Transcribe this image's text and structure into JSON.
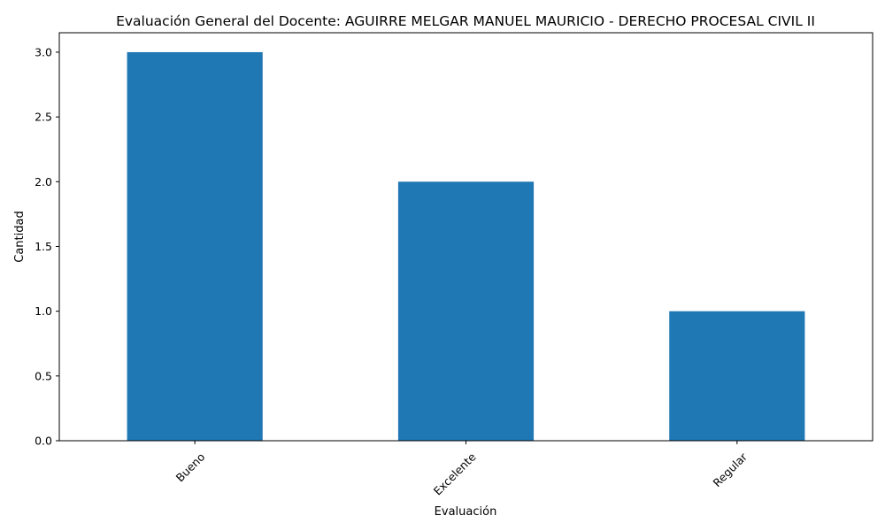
{
  "chart_data": {
    "type": "bar",
    "title": "Evaluación General del Docente: AGUIRRE MELGAR MANUEL MAURICIO - DERECHO PROCESAL CIVIL II",
    "xlabel": "Evaluación",
    "ylabel": "Cantidad",
    "categories": [
      "Bueno",
      "Excelente",
      "Regular"
    ],
    "values": [
      3,
      2,
      1
    ],
    "ylim": [
      0,
      3.15
    ],
    "yticks": [
      "0.0",
      "0.5",
      "1.0",
      "1.5",
      "2.0",
      "2.5",
      "3.0"
    ],
    "bar_color": "#1f77b4",
    "grid": false,
    "xtick_rotation": 45
  }
}
